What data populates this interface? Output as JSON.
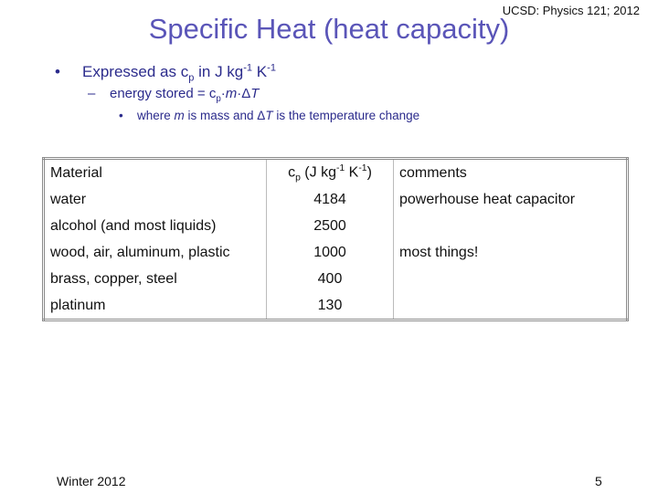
{
  "header": {
    "course": "UCSD: Physics 121; 2012",
    "title": "Specific Heat (heat capacity)"
  },
  "bullets": [
    [
      {
        "text": "Expressed as c"
      },
      {
        "sub": "p"
      },
      {
        "text": " in J kg"
      },
      {
        "sup": "-1"
      },
      {
        "text": " K"
      },
      {
        "sup": "-1"
      }
    ],
    [
      {
        "text": "energy stored = c"
      },
      {
        "sub": "p"
      },
      {
        "text": "·"
      },
      {
        "italic": "m"
      },
      {
        "text": "·Δ"
      },
      {
        "italic": "T"
      }
    ],
    [
      {
        "text": "where "
      },
      {
        "italic": "m"
      },
      {
        "text": " is mass and Δ"
      },
      {
        "italic": "T"
      },
      {
        "text": " is the temperature change"
      }
    ]
  ],
  "table": {
    "header": [
      [
        {
          "text": "Material"
        }
      ],
      [
        {
          "text": "c"
        },
        {
          "sub": "p"
        },
        {
          "text": " (J kg"
        },
        {
          "sup": "-1"
        },
        {
          "text": " K"
        },
        {
          "sup": "-1"
        },
        {
          "text": ")"
        }
      ],
      [
        {
          "text": "comments"
        }
      ]
    ],
    "rows": [
      [
        "water",
        4184,
        "powerhouse heat capacitor"
      ],
      [
        "alcohol (and most liquids)",
        2500,
        null
      ],
      [
        "wood, air, aluminum, plastic",
        1000,
        "most things!"
      ],
      [
        "brass, copper, steel",
        400,
        null
      ],
      [
        "platinum",
        130,
        null
      ]
    ]
  },
  "footer": {
    "left": "Winter 2012",
    "page": 5
  }
}
